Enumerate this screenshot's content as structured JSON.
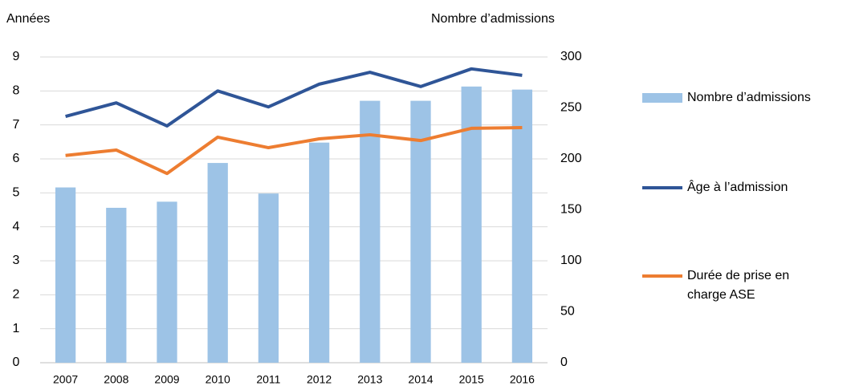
{
  "chart_data": {
    "type": "bar-line",
    "y_label": "Années",
    "y2_label": "Nombre d’admissions",
    "categories": [
      "2007",
      "2008",
      "2009",
      "2010",
      "2011",
      "2012",
      "2013",
      "2014",
      "2015",
      "2016"
    ],
    "series": [
      {
        "name": "Nombre d’admissions",
        "type": "bar",
        "axis": "y2",
        "color": "#9dc3e6",
        "values": [
          172,
          152,
          158,
          196,
          166,
          216,
          257,
          257,
          271,
          268
        ]
      },
      {
        "name": "Âge à l’admission",
        "type": "line",
        "axis": "y",
        "color": "#2f5597",
        "values": [
          7.25,
          7.65,
          6.97,
          8.0,
          7.53,
          8.2,
          8.55,
          8.13,
          8.65,
          8.46
        ]
      },
      {
        "name": "Durée de prise en charge ASE",
        "type": "line",
        "axis": "y",
        "color": "#ed7d31",
        "values": [
          6.1,
          6.26,
          5.57,
          6.64,
          6.33,
          6.59,
          6.71,
          6.54,
          6.9,
          6.92
        ]
      }
    ],
    "ylim": [
      0,
      9
    ],
    "yticks": [
      0,
      1,
      2,
      3,
      4,
      5,
      6,
      7,
      8,
      9
    ],
    "y2lim": [
      0,
      300
    ],
    "y2ticks": [
      0,
      50,
      100,
      150,
      200,
      250,
      300
    ],
    "grid": true,
    "legend": "right"
  }
}
